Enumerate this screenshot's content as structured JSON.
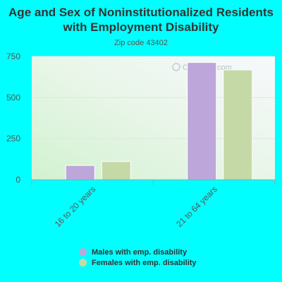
{
  "chart_data": {
    "type": "bar",
    "title": "Age and Sex of Noninstitutionalized Residents with Employment Disability",
    "subtitle": "Zip code 43402",
    "categories": [
      "16 to 20 years",
      "21 to 64 years"
    ],
    "series": [
      {
        "name": "Males with emp. disability",
        "values": [
          87,
          713
        ],
        "color": "#bca6da"
      },
      {
        "name": "Females with emp. disability",
        "values": [
          111,
          668
        ],
        "color": "#c5d9a7"
      }
    ],
    "ylim": [
      0,
      750
    ],
    "yticks": [
      "0",
      "250",
      "500",
      "750"
    ],
    "grid": true,
    "legend_position": "bottom",
    "watermark": "City-Data.com"
  }
}
